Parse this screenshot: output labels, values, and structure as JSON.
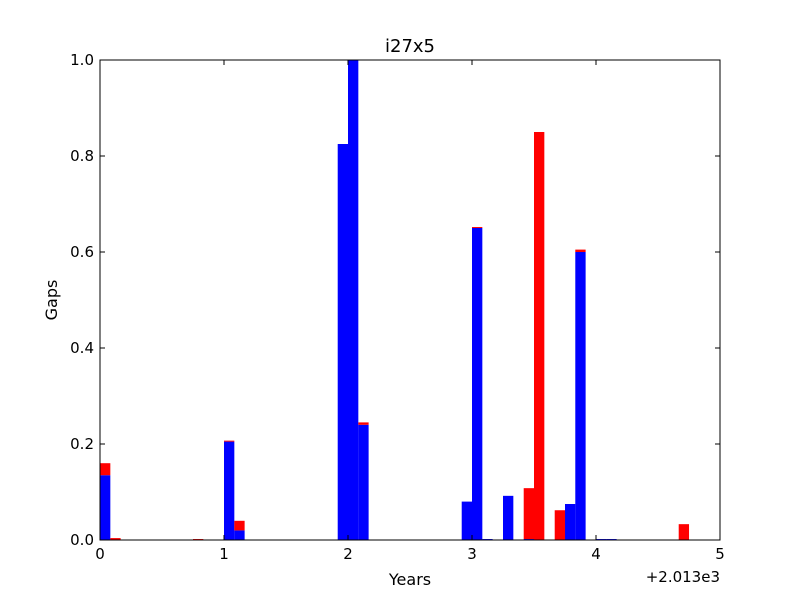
{
  "chart_data": {
    "type": "bar",
    "title": "i27x5",
    "xlabel": "Years",
    "ylabel": "Gaps",
    "x_offset_label": "+2.013e3",
    "xlim": [
      0,
      5
    ],
    "ylim": [
      0,
      1.0
    ],
    "xticks": [
      "0",
      "1",
      "2",
      "3",
      "4",
      "5"
    ],
    "yticks": [
      "0.0",
      "0.2",
      "0.4",
      "0.6",
      "0.8",
      "1.0"
    ],
    "bin_width": 0.0833,
    "stacked": true,
    "grid": false,
    "series": [
      {
        "color": "#0000ff",
        "bins": [
          {
            "x": 0.0,
            "value": 0.135
          },
          {
            "x": 1.0,
            "value": 0.205
          },
          {
            "x": 1.083,
            "value": 0.02
          },
          {
            "x": 1.917,
            "value": 0.825
          },
          {
            "x": 2.0,
            "value": 1.0
          },
          {
            "x": 2.083,
            "value": 0.24
          },
          {
            "x": 2.917,
            "value": 0.08
          },
          {
            "x": 3.0,
            "value": 0.65
          },
          {
            "x": 3.083,
            "value": 0.002
          },
          {
            "x": 3.25,
            "value": 0.092
          },
          {
            "x": 3.417,
            "value": 0.002
          },
          {
            "x": 3.75,
            "value": 0.075
          },
          {
            "x": 3.833,
            "value": 0.6
          },
          {
            "x": 4.0,
            "value": 0.002
          },
          {
            "x": 4.083,
            "value": 0.002
          }
        ]
      },
      {
        "color": "#ff0000",
        "bins": [
          {
            "x": 0.0,
            "value": 0.025
          },
          {
            "x": 0.083,
            "value": 0.004
          },
          {
            "x": 0.75,
            "value": 0.002
          },
          {
            "x": 1.0,
            "value": 0.002
          },
          {
            "x": 1.083,
            "value": 0.02
          },
          {
            "x": 2.083,
            "value": 0.005
          },
          {
            "x": 3.0,
            "value": 0.002
          },
          {
            "x": 3.417,
            "value": 0.106
          },
          {
            "x": 3.5,
            "value": 0.85
          },
          {
            "x": 3.667,
            "value": 0.062
          },
          {
            "x": 3.833,
            "value": 0.005
          },
          {
            "x": 4.667,
            "value": 0.033
          }
        ]
      }
    ]
  }
}
